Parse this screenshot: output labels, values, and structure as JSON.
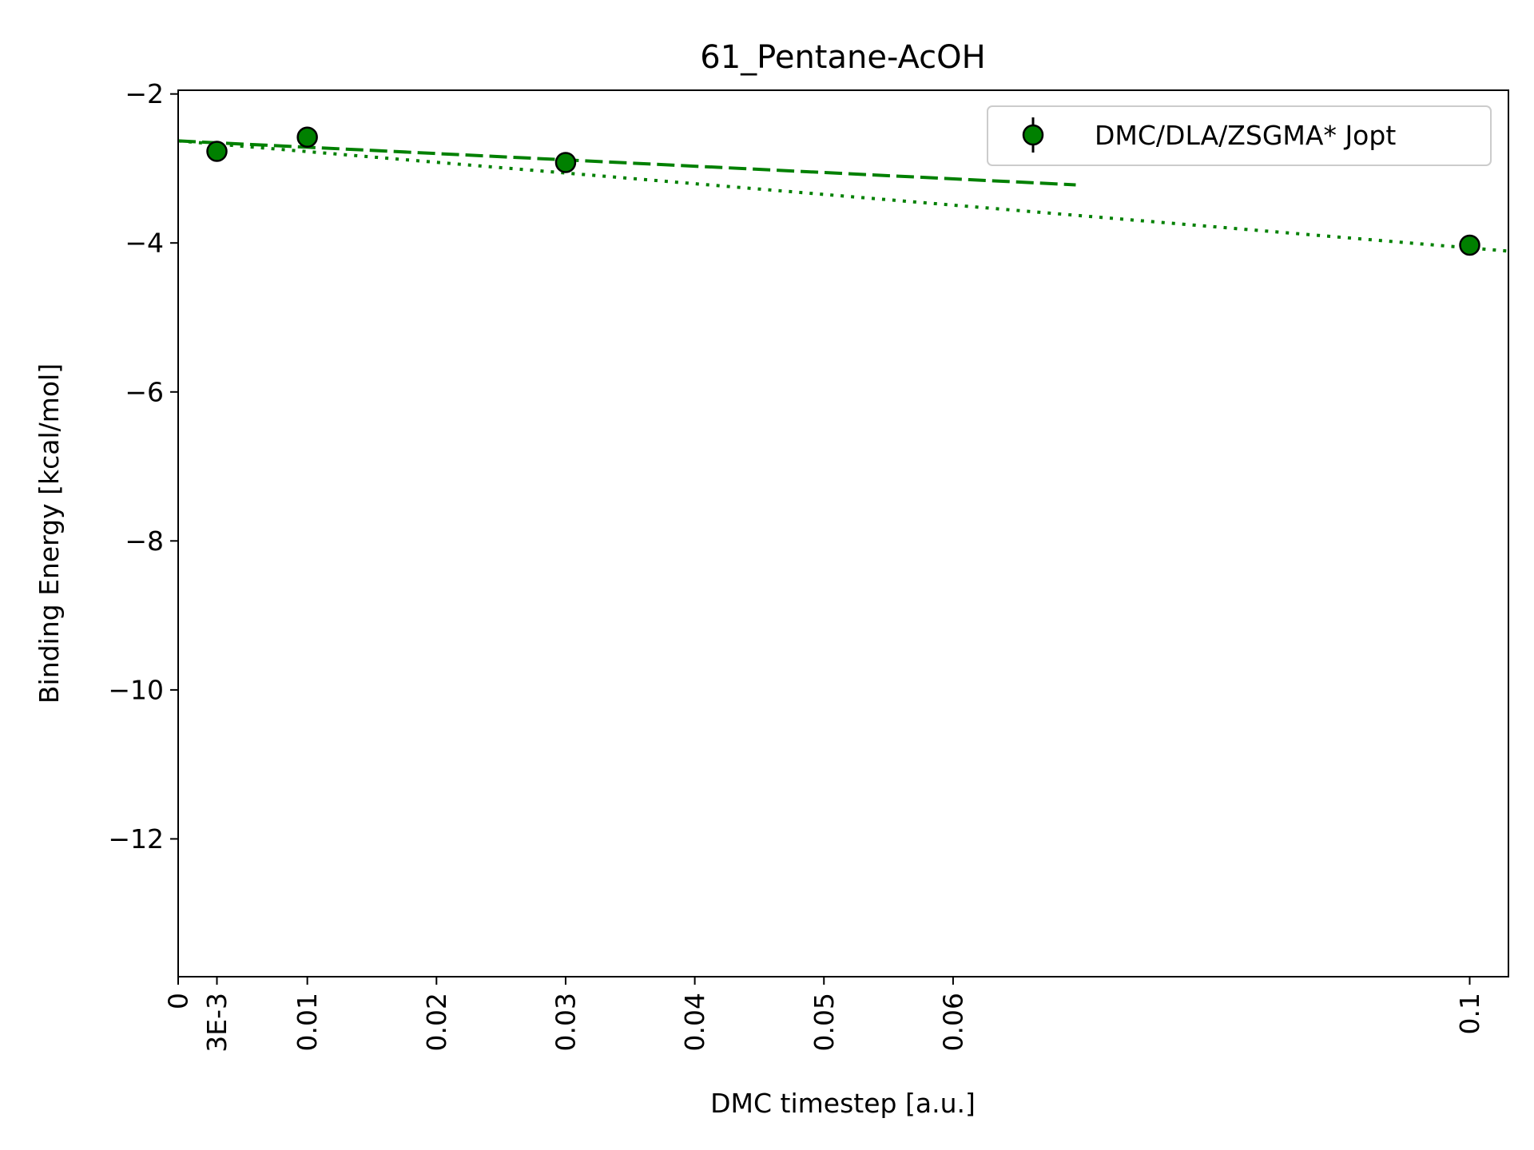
{
  "chart_data": {
    "type": "scatter",
    "title": "61_Pentane-AcOH",
    "xlabel": "DMC timestep [a.u.]",
    "ylabel": "Binding Energy [kcal/mol]",
    "xlim": [
      0,
      0.103
    ],
    "ylim": [
      -13.85,
      -1.95
    ],
    "x_ticks": [
      {
        "value": 0,
        "label": "0"
      },
      {
        "value": 0.003,
        "label": "3E-3"
      },
      {
        "value": 0.01,
        "label": "0.01"
      },
      {
        "value": 0.02,
        "label": "0.02"
      },
      {
        "value": 0.03,
        "label": "0.03"
      },
      {
        "value": 0.04,
        "label": "0.04"
      },
      {
        "value": 0.05,
        "label": "0.05"
      },
      {
        "value": 0.06,
        "label": "0.06"
      },
      {
        "value": 0.1,
        "label": "0.1"
      }
    ],
    "y_ticks": [
      {
        "value": -2,
        "label": "−2"
      },
      {
        "value": -4,
        "label": "−4"
      },
      {
        "value": -6,
        "label": "−6"
      },
      {
        "value": -8,
        "label": "−8"
      },
      {
        "value": -10,
        "label": "−10"
      },
      {
        "value": -12,
        "label": "−12"
      }
    ],
    "grid": false,
    "legend_position": "top-right",
    "series": [
      {
        "name": "DMC/DLA/ZSGMA* Jopt",
        "color": "#008000",
        "marker": "circle",
        "x": [
          0.003,
          0.01,
          0.03,
          0.1
        ],
        "y": [
          -2.77,
          -2.58,
          -2.92,
          -4.03
        ]
      }
    ],
    "fits": [
      {
        "style": "dashed",
        "color": "#008000",
        "x": [
          0,
          0.0695
        ],
        "y": [
          -2.63,
          -3.22
        ]
      },
      {
        "style": "dotted",
        "color": "#008000",
        "x": [
          0,
          0.103
        ],
        "y": [
          -2.63,
          -4.11
        ]
      }
    ]
  }
}
